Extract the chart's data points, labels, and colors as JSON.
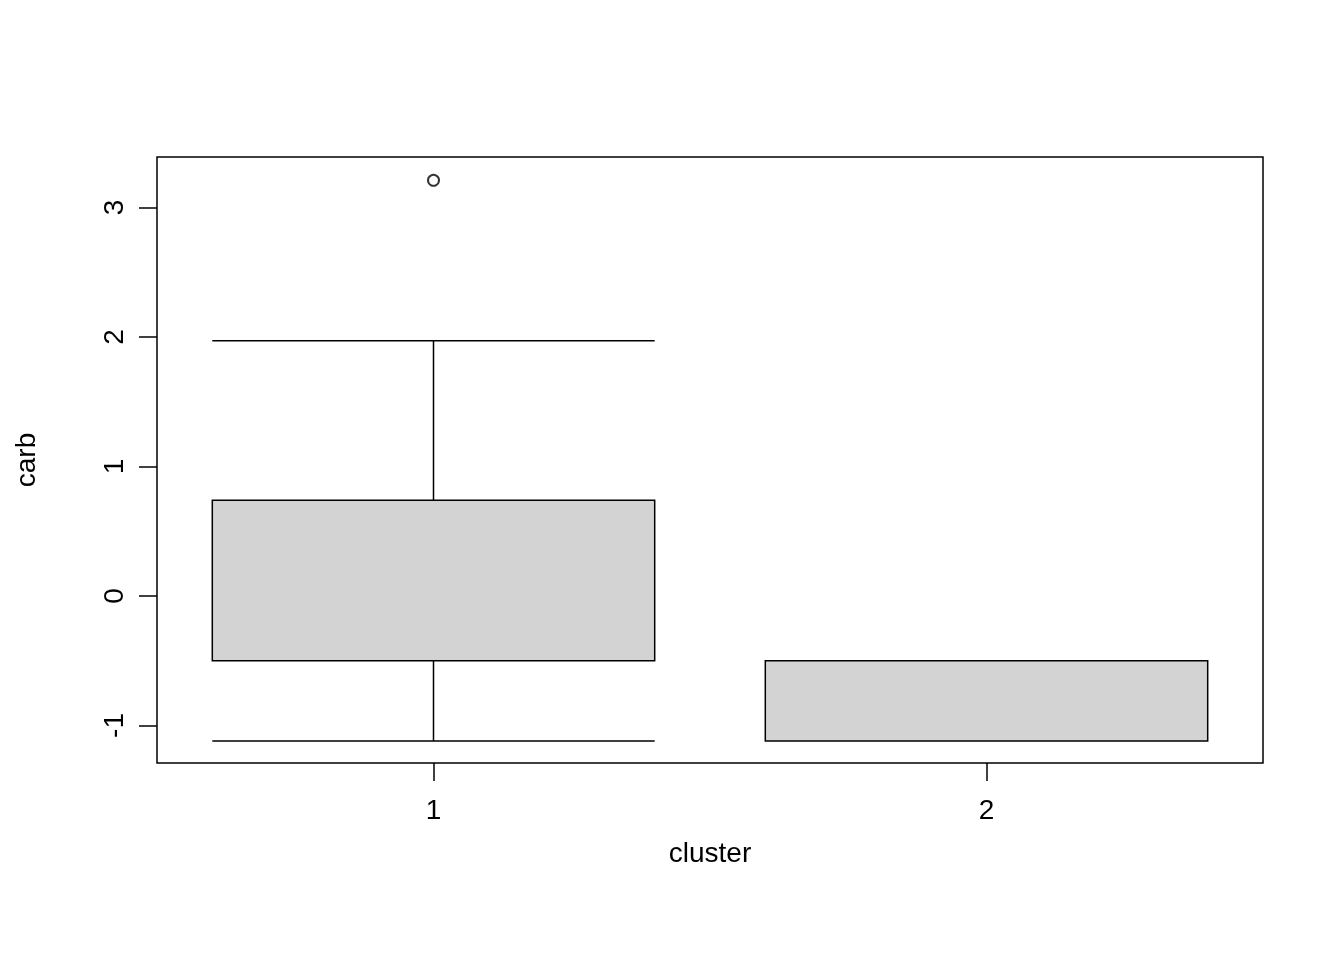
{
  "chart_data": {
    "type": "box",
    "xlabel": "cluster",
    "ylabel": "carb",
    "categories": [
      "1",
      "2"
    ],
    "color": "#d3d3d3",
    "boxes": [
      {
        "low": -1.12,
        "q1": -0.5,
        "median": 0.74,
        "q3": 0.74,
        "high": 1.97,
        "outliers": [
          3.21
        ]
      },
      {
        "low": -1.12,
        "q1": -1.12,
        "median": -0.5,
        "q3": -0.5,
        "high": -0.5
      }
    ],
    "ylim": [
      -1.29,
      3.39
    ],
    "yticks": [
      -1,
      0,
      1,
      2,
      3
    ],
    "grid": false
  }
}
